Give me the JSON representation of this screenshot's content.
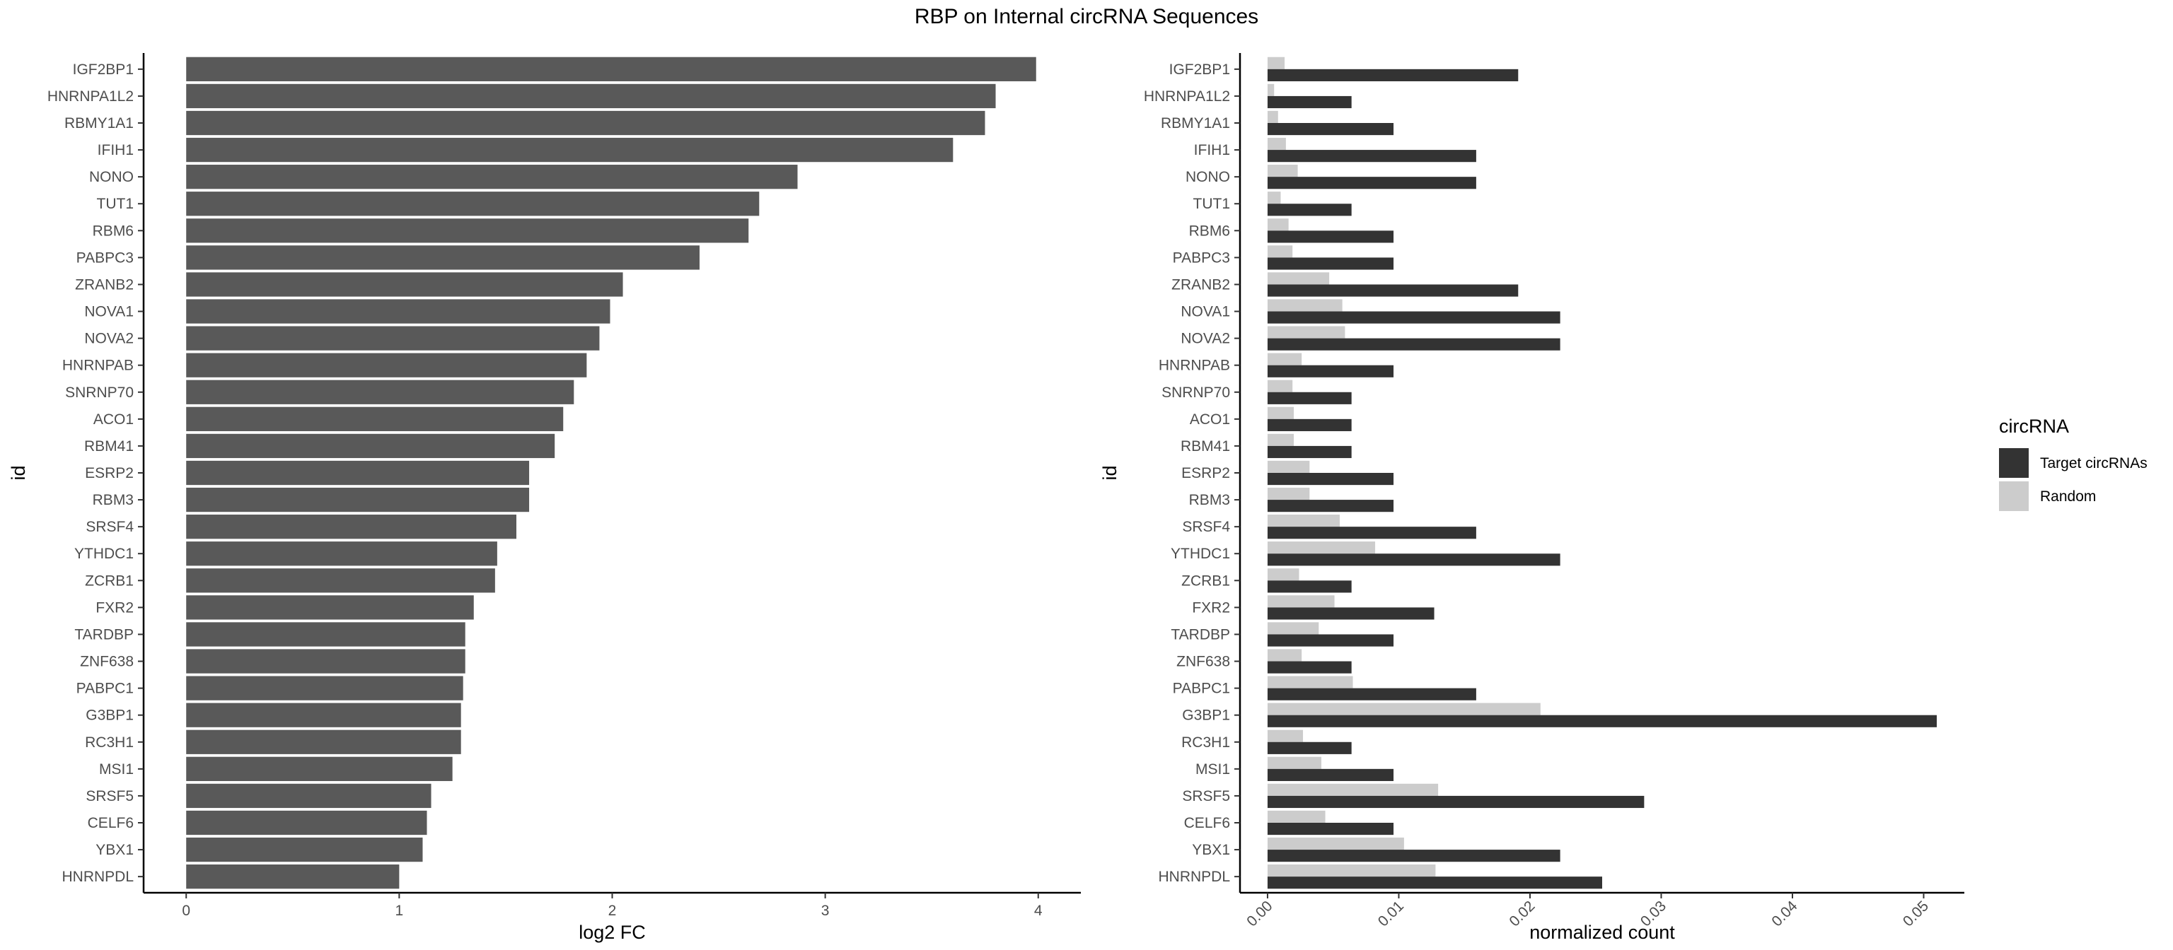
{
  "title": "RBP on Internal circRNA Sequences",
  "colors": {
    "left_bar": "#595959",
    "target": "#333333",
    "random": "#cccccc",
    "axis": "#000000",
    "tick_text": "#4d4d4d"
  },
  "legend": {
    "title": "circRNA",
    "placement": "right",
    "items": [
      {
        "label": "Target circRNAs",
        "color_key": "target"
      },
      {
        "label": "Random",
        "color_key": "random"
      }
    ]
  },
  "chart_data": [
    {
      "type": "bar",
      "orientation": "horizontal",
      "ylabel": "id",
      "xlabel": "log2 FC",
      "xlim": [
        -0.2,
        4.2
      ],
      "xticks": [
        "0",
        "1",
        "2",
        "3",
        "4"
      ],
      "grid": false,
      "categories": [
        "IGF2BP1",
        "HNRNPA1L2",
        "RBMY1A1",
        "IFIH1",
        "NONO",
        "TUT1",
        "RBM6",
        "PABPC3",
        "ZRANB2",
        "NOVA1",
        "NOVA2",
        "HNRNPAB",
        "SNRNP70",
        "ACO1",
        "RBM41",
        "ESRP2",
        "RBM3",
        "SRSF4",
        "YTHDC1",
        "ZCRB1",
        "FXR2",
        "TARDBP",
        "ZNF638",
        "PABPC1",
        "G3BP1",
        "RC3H1",
        "MSI1",
        "SRSF5",
        "CELF6",
        "YBX1",
        "HNRNPDL"
      ],
      "values": [
        3.99,
        3.8,
        3.75,
        3.6,
        2.87,
        2.69,
        2.64,
        2.41,
        2.05,
        1.99,
        1.94,
        1.88,
        1.82,
        1.77,
        1.73,
        1.61,
        1.61,
        1.55,
        1.46,
        1.45,
        1.35,
        1.31,
        1.31,
        1.3,
        1.29,
        1.29,
        1.25,
        1.15,
        1.13,
        1.11,
        1.0
      ]
    },
    {
      "type": "bar",
      "orientation": "horizontal",
      "ylabel": "id",
      "xlabel": "normalized count",
      "xlim": [
        -0.0021,
        0.0531
      ],
      "xticks": [
        "0.00",
        "0.01",
        "0.02",
        "0.03",
        "0.04",
        "0.05"
      ],
      "grid": false,
      "categories": [
        "IGF2BP1",
        "HNRNPA1L2",
        "RBMY1A1",
        "IFIH1",
        "NONO",
        "TUT1",
        "RBM6",
        "PABPC3",
        "ZRANB2",
        "NOVA1",
        "NOVA2",
        "HNRNPAB",
        "SNRNP70",
        "ACO1",
        "RBM41",
        "ESRP2",
        "RBM3",
        "SRSF4",
        "YTHDC1",
        "ZCRB1",
        "FXR2",
        "TARDBP",
        "ZNF638",
        "PABPC1",
        "G3BP1",
        "RC3H1",
        "MSI1",
        "SRSF5",
        "CELF6",
        "YBX1",
        "HNRNPDL"
      ],
      "series": [
        {
          "name": "Target circRNAs",
          "values": [
            0.0191,
            0.0064,
            0.0096,
            0.0159,
            0.0159,
            0.0064,
            0.0096,
            0.0096,
            0.0191,
            0.0223,
            0.0223,
            0.0096,
            0.0064,
            0.0064,
            0.0064,
            0.0096,
            0.0096,
            0.0159,
            0.0223,
            0.0064,
            0.0127,
            0.0096,
            0.0064,
            0.0159,
            0.051,
            0.0064,
            0.0096,
            0.0287,
            0.0096,
            0.0223,
            0.0255
          ]
        },
        {
          "name": "Random",
          "values": [
            0.0013,
            0.0005,
            0.0008,
            0.0014,
            0.0023,
            0.001,
            0.0016,
            0.0019,
            0.0047,
            0.0057,
            0.0059,
            0.0026,
            0.0019,
            0.002,
            0.002,
            0.0032,
            0.0032,
            0.0055,
            0.0082,
            0.0024,
            0.0051,
            0.0039,
            0.0026,
            0.0065,
            0.0208,
            0.0027,
            0.0041,
            0.013,
            0.0044,
            0.0104,
            0.0128
          ]
        }
      ]
    }
  ]
}
